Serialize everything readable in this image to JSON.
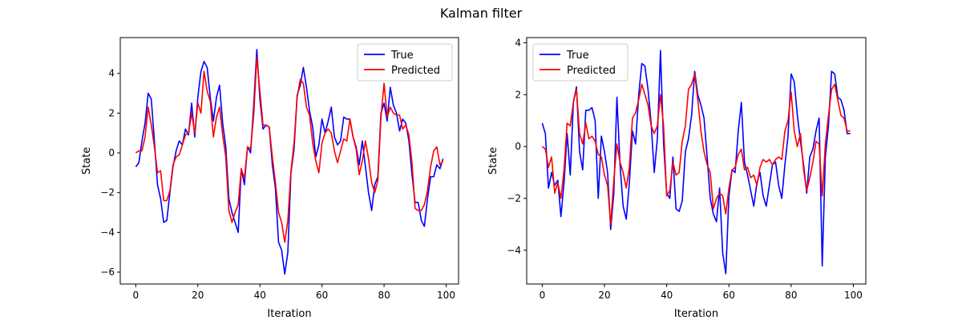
{
  "figure": {
    "title": "Kalman filter"
  },
  "chart_data": [
    {
      "type": "line",
      "xlabel": "Iteration",
      "ylabel": "State",
      "xlim": [
        -5,
        104
      ],
      "ylim": [
        -6.6,
        5.8
      ],
      "xticks": [
        0,
        20,
        40,
        60,
        80,
        100
      ],
      "yticks": [
        -6,
        -4,
        -2,
        0,
        2,
        4
      ],
      "legend": "top-right",
      "series": [
        {
          "name": "True",
          "color": "#0000ff",
          "x": [
            0,
            1,
            2,
            3,
            4,
            5,
            6,
            7,
            8,
            9,
            10,
            11,
            12,
            13,
            14,
            15,
            16,
            17,
            18,
            19,
            20,
            21,
            22,
            23,
            24,
            25,
            26,
            27,
            28,
            29,
            30,
            31,
            32,
            33,
            34,
            35,
            36,
            37,
            38,
            39,
            40,
            41,
            42,
            43,
            44,
            45,
            46,
            47,
            48,
            49,
            50,
            51,
            52,
            53,
            54,
            55,
            56,
            57,
            58,
            59,
            60,
            61,
            62,
            63,
            64,
            65,
            66,
            67,
            68,
            69,
            70,
            71,
            72,
            73,
            74,
            75,
            76,
            77,
            78,
            79,
            80,
            81,
            82,
            83,
            84,
            85,
            86,
            87,
            88,
            89,
            90,
            91,
            92,
            93,
            94,
            95,
            96,
            97,
            98,
            99
          ],
          "values": [
            -0.7,
            -0.5,
            0.6,
            1.5,
            3.0,
            2.7,
            0.6,
            -1.6,
            -2.3,
            -3.5,
            -3.4,
            -2.0,
            -0.7,
            0.1,
            0.6,
            0.4,
            1.2,
            0.9,
            2.5,
            0.8,
            2.8,
            4.1,
            4.6,
            4.3,
            2.8,
            1.6,
            2.8,
            3.4,
            1.5,
            0.3,
            -2.3,
            -3.0,
            -3.5,
            -4.0,
            -0.8,
            -1.6,
            0.3,
            0.0,
            2.4,
            5.2,
            2.7,
            1.2,
            1.4,
            1.3,
            -0.6,
            -1.8,
            -4.5,
            -4.9,
            -6.1,
            -5.0,
            -1.0,
            0.2,
            2.9,
            3.4,
            4.3,
            3.3,
            2.1,
            1.3,
            -0.2,
            0.4,
            1.7,
            1.0,
            1.6,
            2.3,
            0.8,
            0.4,
            0.6,
            1.8,
            1.7,
            1.7,
            0.8,
            0.3,
            -0.6,
            0.6,
            -0.7,
            -2.0,
            -2.9,
            -1.6,
            -1.2,
            2.0,
            2.5,
            1.6,
            3.3,
            2.4,
            2.0,
            1.1,
            1.7,
            1.5,
            0.6,
            -1.1,
            -2.5,
            -2.5,
            -3.4,
            -3.7,
            -2.3,
            -1.2,
            -1.2,
            -0.6,
            -0.8,
            -0.3
          ]
        },
        {
          "name": "Predicted",
          "color": "#ff0000",
          "x": [
            0,
            1,
            2,
            3,
            4,
            5,
            6,
            7,
            8,
            9,
            10,
            11,
            12,
            13,
            14,
            15,
            16,
            17,
            18,
            19,
            20,
            21,
            22,
            23,
            24,
            25,
            26,
            27,
            28,
            29,
            30,
            31,
            32,
            33,
            34,
            35,
            36,
            37,
            38,
            39,
            40,
            41,
            42,
            43,
            44,
            45,
            46,
            47,
            48,
            49,
            50,
            51,
            52,
            53,
            54,
            55,
            56,
            57,
            58,
            59,
            60,
            61,
            62,
            63,
            64,
            65,
            66,
            67,
            68,
            69,
            70,
            71,
            72,
            73,
            74,
            75,
            76,
            77,
            78,
            79,
            80,
            81,
            82,
            83,
            84,
            85,
            86,
            87,
            88,
            89,
            90,
            91,
            92,
            93,
            94,
            95,
            96,
            97,
            98,
            99
          ],
          "values": [
            0.0,
            0.1,
            0.1,
            0.8,
            2.3,
            1.4,
            0.3,
            -1.0,
            -0.9,
            -2.4,
            -2.4,
            -1.9,
            -0.6,
            -0.2,
            -0.1,
            0.4,
            0.9,
            1.0,
            2.0,
            1.0,
            2.5,
            2.0,
            4.1,
            3.1,
            2.6,
            0.8,
            1.8,
            2.3,
            0.9,
            -0.2,
            -2.9,
            -3.5,
            -3.0,
            -2.6,
            -0.8,
            -1.3,
            0.3,
            0.2,
            1.9,
            4.8,
            3.1,
            1.4,
            1.4,
            1.3,
            -0.2,
            -1.5,
            -3.0,
            -3.5,
            -4.5,
            -3.4,
            -0.9,
            0.5,
            2.8,
            3.7,
            3.5,
            2.3,
            1.9,
            0.5,
            -0.4,
            -1.0,
            0.5,
            1.0,
            1.2,
            1.0,
            0.1,
            -0.5,
            0.1,
            0.7,
            0.6,
            1.7,
            0.8,
            0.2,
            -1.1,
            -0.4,
            0.6,
            -0.3,
            -1.5,
            -2.0,
            -1.4,
            1.8,
            3.5,
            1.8,
            2.3,
            2.0,
            1.9,
            1.9,
            1.2,
            1.4,
            0.9,
            -0.5,
            -2.8,
            -2.9,
            -2.9,
            -2.6,
            -1.9,
            -0.7,
            0.1,
            0.3,
            -0.6,
            -0.4
          ]
        }
      ]
    },
    {
      "type": "line",
      "xlabel": "Iteration",
      "ylabel": "State",
      "xlim": [
        -5,
        104
      ],
      "ylim": [
        -5.3,
        4.2
      ],
      "xticks": [
        0,
        20,
        40,
        60,
        80,
        100
      ],
      "yticks": [
        -4,
        -2,
        0,
        2,
        4
      ],
      "legend": "top-left",
      "series": [
        {
          "name": "True",
          "color": "#0000ff",
          "x": [
            0,
            1,
            2,
            3,
            4,
            5,
            6,
            7,
            8,
            9,
            10,
            11,
            12,
            13,
            14,
            15,
            16,
            17,
            18,
            19,
            20,
            21,
            22,
            23,
            24,
            25,
            26,
            27,
            28,
            29,
            30,
            31,
            32,
            33,
            34,
            35,
            36,
            37,
            38,
            39,
            40,
            41,
            42,
            43,
            44,
            45,
            46,
            47,
            48,
            49,
            50,
            51,
            52,
            53,
            54,
            55,
            56,
            57,
            58,
            59,
            60,
            61,
            62,
            63,
            64,
            65,
            66,
            67,
            68,
            69,
            70,
            71,
            72,
            73,
            74,
            75,
            76,
            77,
            78,
            79,
            80,
            81,
            82,
            83,
            84,
            85,
            86,
            87,
            88,
            89,
            90,
            91,
            92,
            93,
            94,
            95,
            96,
            97,
            98,
            99
          ],
          "values": [
            0.9,
            0.5,
            -1.6,
            -1.0,
            -1.5,
            -1.3,
            -2.7,
            -1.4,
            0.5,
            -1.1,
            1.7,
            2.3,
            -0.2,
            -0.9,
            1.4,
            1.4,
            1.5,
            1.0,
            -2.0,
            0.4,
            -0.2,
            -1.0,
            -3.2,
            -1.8,
            1.9,
            -0.7,
            -2.3,
            -2.8,
            -1.4,
            0.6,
            0.1,
            2.0,
            3.2,
            3.1,
            2.2,
            0.9,
            -1.0,
            0.3,
            3.7,
            0.1,
            -1.8,
            -2.0,
            -0.4,
            -2.4,
            -2.5,
            -2.1,
            -0.2,
            0.3,
            1.2,
            2.9,
            2.0,
            1.6,
            1.1,
            -0.4,
            -2.0,
            -2.6,
            -2.9,
            -1.6,
            -4.1,
            -4.9,
            -1.9,
            -0.9,
            -1.0,
            0.6,
            1.7,
            -0.6,
            -1.1,
            -1.7,
            -2.3,
            -1.4,
            -1.0,
            -1.9,
            -2.3,
            -1.5,
            -0.7,
            -0.6,
            -1.5,
            -2.0,
            -0.7,
            0.4,
            2.8,
            2.5,
            1.2,
            0.2,
            -0.7,
            -1.8,
            -0.4,
            -0.1,
            0.6,
            1.1,
            -4.6,
            -0.4,
            0.8,
            2.9,
            2.8,
            1.9,
            1.8,
            1.4,
            0.5,
            0.5
          ]
        },
        {
          "name": "Predicted",
          "color": "#ff0000",
          "x": [
            0,
            1,
            2,
            3,
            4,
            5,
            6,
            7,
            8,
            9,
            10,
            11,
            12,
            13,
            14,
            15,
            16,
            17,
            18,
            19,
            20,
            21,
            22,
            23,
            24,
            25,
            26,
            27,
            28,
            29,
            30,
            31,
            32,
            33,
            34,
            35,
            36,
            37,
            38,
            39,
            40,
            41,
            42,
            43,
            44,
            45,
            46,
            47,
            48,
            49,
            50,
            51,
            52,
            53,
            54,
            55,
            56,
            57,
            58,
            59,
            60,
            61,
            62,
            63,
            64,
            65,
            66,
            67,
            68,
            69,
            70,
            71,
            72,
            73,
            74,
            75,
            76,
            77,
            78,
            79,
            80,
            81,
            82,
            83,
            84,
            85,
            86,
            87,
            88,
            89,
            90,
            91,
            92,
            93,
            94,
            95,
            96,
            97,
            98,
            99
          ],
          "values": [
            0.0,
            -0.1,
            -0.8,
            -0.4,
            -1.8,
            -1.4,
            -2.0,
            -0.9,
            0.9,
            0.8,
            1.7,
            2.2,
            0.5,
            0.1,
            0.9,
            0.3,
            0.4,
            0.2,
            -0.3,
            -0.4,
            -1.1,
            -1.5,
            -3.0,
            -1.3,
            0.1,
            -0.6,
            -1.0,
            -1.6,
            -0.8,
            1.1,
            1.3,
            1.8,
            2.4,
            2.0,
            1.6,
            0.8,
            0.5,
            0.8,
            2.0,
            0.8,
            -1.9,
            -1.7,
            -0.6,
            -1.1,
            -1.0,
            0.2,
            0.8,
            2.2,
            2.4,
            2.8,
            1.8,
            0.6,
            -0.2,
            -0.7,
            -1.0,
            -2.4,
            -2.0,
            -1.8,
            -1.9,
            -2.6,
            -1.6,
            -0.9,
            -0.8,
            -0.3,
            -0.1,
            -0.9,
            -0.8,
            -1.2,
            -1.1,
            -1.5,
            -0.8,
            -0.5,
            -0.6,
            -0.5,
            -0.7,
            -0.5,
            -0.4,
            -0.5,
            0.6,
            1.0,
            2.1,
            0.6,
            0.0,
            0.5,
            -0.9,
            -1.7,
            -1.2,
            -0.6,
            0.2,
            0.1,
            -1.9,
            0.1,
            1.2,
            2.2,
            2.4,
            1.8,
            1.2,
            1.1,
            0.6,
            0.6
          ]
        }
      ]
    }
  ]
}
